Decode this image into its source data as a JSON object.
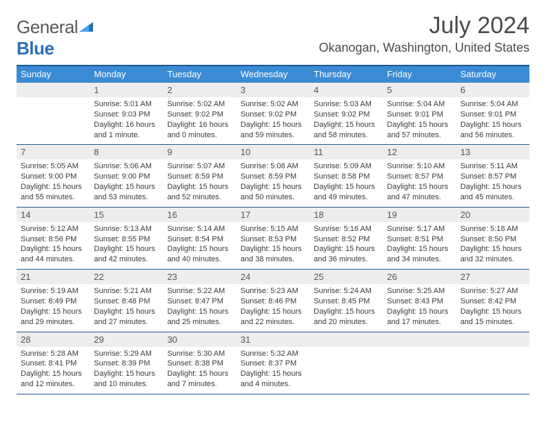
{
  "brand": {
    "part1": "General",
    "part2": "Blue"
  },
  "title": "July 2024",
  "location": "Okanogan, Washington, United States",
  "colors": {
    "header_bg": "#3b8bd4",
    "rule": "#1d5a93",
    "daynum_bg": "#ededed",
    "text": "#3a3a3a",
    "brand_blue": "#2b6fb5"
  },
  "day_names": [
    "Sunday",
    "Monday",
    "Tuesday",
    "Wednesday",
    "Thursday",
    "Friday",
    "Saturday"
  ],
  "weeks": [
    [
      {
        "n": "",
        "sr": "",
        "ss": "",
        "dl": ""
      },
      {
        "n": "1",
        "sr": "Sunrise: 5:01 AM",
        "ss": "Sunset: 9:03 PM",
        "dl": "Daylight: 16 hours and 1 minute."
      },
      {
        "n": "2",
        "sr": "Sunrise: 5:02 AM",
        "ss": "Sunset: 9:02 PM",
        "dl": "Daylight: 16 hours and 0 minutes."
      },
      {
        "n": "3",
        "sr": "Sunrise: 5:02 AM",
        "ss": "Sunset: 9:02 PM",
        "dl": "Daylight: 15 hours and 59 minutes."
      },
      {
        "n": "4",
        "sr": "Sunrise: 5:03 AM",
        "ss": "Sunset: 9:02 PM",
        "dl": "Daylight: 15 hours and 58 minutes."
      },
      {
        "n": "5",
        "sr": "Sunrise: 5:04 AM",
        "ss": "Sunset: 9:01 PM",
        "dl": "Daylight: 15 hours and 57 minutes."
      },
      {
        "n": "6",
        "sr": "Sunrise: 5:04 AM",
        "ss": "Sunset: 9:01 PM",
        "dl": "Daylight: 15 hours and 56 minutes."
      }
    ],
    [
      {
        "n": "7",
        "sr": "Sunrise: 5:05 AM",
        "ss": "Sunset: 9:00 PM",
        "dl": "Daylight: 15 hours and 55 minutes."
      },
      {
        "n": "8",
        "sr": "Sunrise: 5:06 AM",
        "ss": "Sunset: 9:00 PM",
        "dl": "Daylight: 15 hours and 53 minutes."
      },
      {
        "n": "9",
        "sr": "Sunrise: 5:07 AM",
        "ss": "Sunset: 8:59 PM",
        "dl": "Daylight: 15 hours and 52 minutes."
      },
      {
        "n": "10",
        "sr": "Sunrise: 5:08 AM",
        "ss": "Sunset: 8:59 PM",
        "dl": "Daylight: 15 hours and 50 minutes."
      },
      {
        "n": "11",
        "sr": "Sunrise: 5:09 AM",
        "ss": "Sunset: 8:58 PM",
        "dl": "Daylight: 15 hours and 49 minutes."
      },
      {
        "n": "12",
        "sr": "Sunrise: 5:10 AM",
        "ss": "Sunset: 8:57 PM",
        "dl": "Daylight: 15 hours and 47 minutes."
      },
      {
        "n": "13",
        "sr": "Sunrise: 5:11 AM",
        "ss": "Sunset: 8:57 PM",
        "dl": "Daylight: 15 hours and 45 minutes."
      }
    ],
    [
      {
        "n": "14",
        "sr": "Sunrise: 5:12 AM",
        "ss": "Sunset: 8:56 PM",
        "dl": "Daylight: 15 hours and 44 minutes."
      },
      {
        "n": "15",
        "sr": "Sunrise: 5:13 AM",
        "ss": "Sunset: 8:55 PM",
        "dl": "Daylight: 15 hours and 42 minutes."
      },
      {
        "n": "16",
        "sr": "Sunrise: 5:14 AM",
        "ss": "Sunset: 8:54 PM",
        "dl": "Daylight: 15 hours and 40 minutes."
      },
      {
        "n": "17",
        "sr": "Sunrise: 5:15 AM",
        "ss": "Sunset: 8:53 PM",
        "dl": "Daylight: 15 hours and 38 minutes."
      },
      {
        "n": "18",
        "sr": "Sunrise: 5:16 AM",
        "ss": "Sunset: 8:52 PM",
        "dl": "Daylight: 15 hours and 36 minutes."
      },
      {
        "n": "19",
        "sr": "Sunrise: 5:17 AM",
        "ss": "Sunset: 8:51 PM",
        "dl": "Daylight: 15 hours and 34 minutes."
      },
      {
        "n": "20",
        "sr": "Sunrise: 5:18 AM",
        "ss": "Sunset: 8:50 PM",
        "dl": "Daylight: 15 hours and 32 minutes."
      }
    ],
    [
      {
        "n": "21",
        "sr": "Sunrise: 5:19 AM",
        "ss": "Sunset: 8:49 PM",
        "dl": "Daylight: 15 hours and 29 minutes."
      },
      {
        "n": "22",
        "sr": "Sunrise: 5:21 AM",
        "ss": "Sunset: 8:48 PM",
        "dl": "Daylight: 15 hours and 27 minutes."
      },
      {
        "n": "23",
        "sr": "Sunrise: 5:22 AM",
        "ss": "Sunset: 8:47 PM",
        "dl": "Daylight: 15 hours and 25 minutes."
      },
      {
        "n": "24",
        "sr": "Sunrise: 5:23 AM",
        "ss": "Sunset: 8:46 PM",
        "dl": "Daylight: 15 hours and 22 minutes."
      },
      {
        "n": "25",
        "sr": "Sunrise: 5:24 AM",
        "ss": "Sunset: 8:45 PM",
        "dl": "Daylight: 15 hours and 20 minutes."
      },
      {
        "n": "26",
        "sr": "Sunrise: 5:25 AM",
        "ss": "Sunset: 8:43 PM",
        "dl": "Daylight: 15 hours and 17 minutes."
      },
      {
        "n": "27",
        "sr": "Sunrise: 5:27 AM",
        "ss": "Sunset: 8:42 PM",
        "dl": "Daylight: 15 hours and 15 minutes."
      }
    ],
    [
      {
        "n": "28",
        "sr": "Sunrise: 5:28 AM",
        "ss": "Sunset: 8:41 PM",
        "dl": "Daylight: 15 hours and 12 minutes."
      },
      {
        "n": "29",
        "sr": "Sunrise: 5:29 AM",
        "ss": "Sunset: 8:39 PM",
        "dl": "Daylight: 15 hours and 10 minutes."
      },
      {
        "n": "30",
        "sr": "Sunrise: 5:30 AM",
        "ss": "Sunset: 8:38 PM",
        "dl": "Daylight: 15 hours and 7 minutes."
      },
      {
        "n": "31",
        "sr": "Sunrise: 5:32 AM",
        "ss": "Sunset: 8:37 PM",
        "dl": "Daylight: 15 hours and 4 minutes."
      },
      {
        "n": "",
        "sr": "",
        "ss": "",
        "dl": ""
      },
      {
        "n": "",
        "sr": "",
        "ss": "",
        "dl": ""
      },
      {
        "n": "",
        "sr": "",
        "ss": "",
        "dl": ""
      }
    ]
  ]
}
